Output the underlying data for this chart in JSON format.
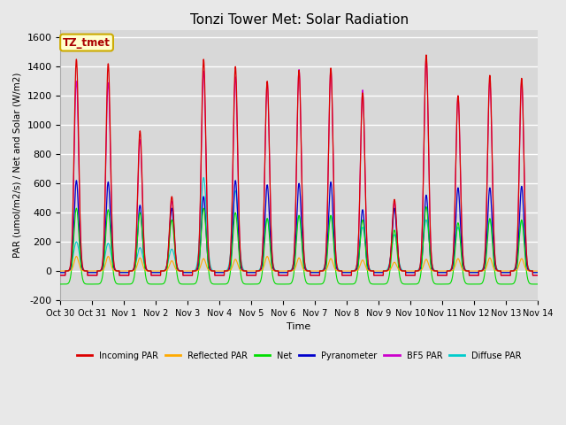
{
  "title": "Tonzi Tower Met: Solar Radiation",
  "ylabel": "PAR (umol/m2/s) / Net and Solar (W/m2)",
  "xlabel": "Time",
  "ylim": [
    -200,
    1650
  ],
  "yticks": [
    -200,
    0,
    200,
    400,
    600,
    800,
    1000,
    1200,
    1400,
    1600
  ],
  "background_color": "#e8e8e8",
  "plot_bg_color": "#d8d8d8",
  "grid_color": "#ffffff",
  "annotation_text": "TZ_tmet",
  "annotation_bg": "#ffffcc",
  "annotation_border": "#ccaa00",
  "legend_entries": [
    {
      "label": "Incoming PAR",
      "color": "#dd0000"
    },
    {
      "label": "Reflected PAR",
      "color": "#ffaa00"
    },
    {
      "label": "Net",
      "color": "#00dd00"
    },
    {
      "label": "Pyranometer",
      "color": "#0000cc"
    },
    {
      "label": "BF5 PAR",
      "color": "#cc00cc"
    },
    {
      "label": "Diffuse PAR",
      "color": "#00cccc"
    }
  ],
  "num_days": 15,
  "incoming_par_peaks": [
    1450,
    1420,
    960,
    510,
    1450,
    1400,
    1300,
    1375,
    1390,
    1220,
    490,
    1480,
    1200,
    1340,
    1320
  ],
  "reflected_par_peaks": [
    100,
    100,
    90,
    70,
    85,
    80,
    100,
    90,
    85,
    75,
    60,
    80,
    85,
    90,
    85
  ],
  "net_peaks": [
    430,
    420,
    400,
    350,
    430,
    400,
    360,
    380,
    380,
    350,
    280,
    440,
    330,
    360,
    350
  ],
  "pyranometer_peaks": [
    620,
    610,
    450,
    430,
    510,
    620,
    590,
    600,
    610,
    420,
    430,
    520,
    570,
    570,
    580
  ],
  "bf5_par_peaks": [
    1300,
    1290,
    900,
    480,
    1370,
    1330,
    1290,
    1380,
    1380,
    1240,
    470,
    1460,
    1200,
    1300,
    1300
  ],
  "diffuse_par_peaks": [
    200,
    190,
    160,
    150,
    640,
    550,
    360,
    380,
    380,
    300,
    250,
    350,
    300,
    350,
    340
  ],
  "net_night": -90,
  "x_tick_labels": [
    "Oct 30",
    "Oct 31",
    "Nov 1",
    "Nov 2",
    "Nov 3",
    "Nov 4",
    "Nov 5",
    "Nov 6",
    "Nov 7",
    "Nov 8",
    "Nov 9",
    "Nov 10",
    "Nov 11",
    "Nov 12",
    "Nov 13",
    "Nov 14"
  ]
}
